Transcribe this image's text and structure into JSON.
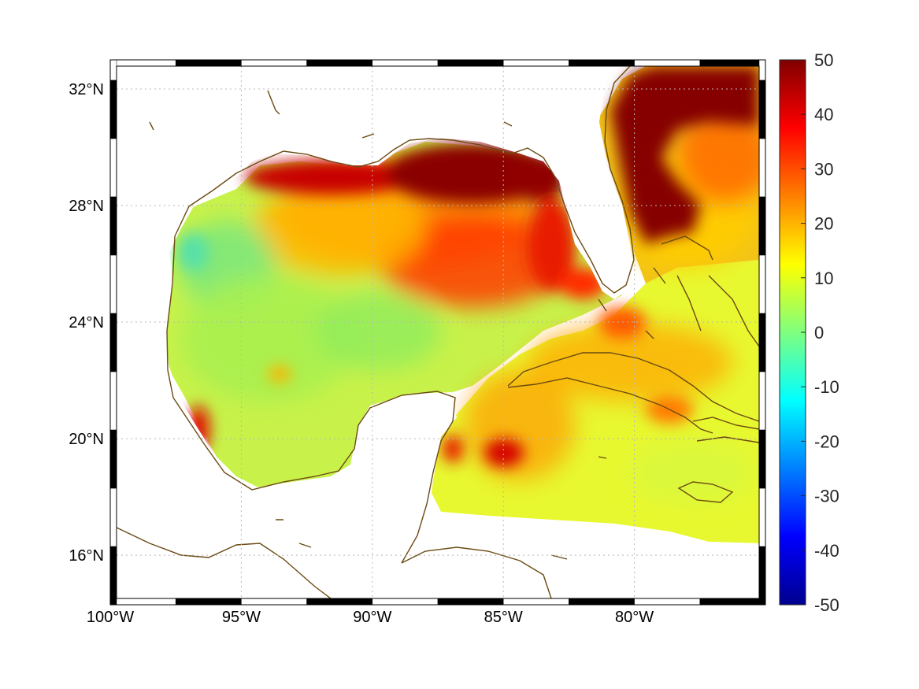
{
  "map": {
    "lon_range": [
      -100,
      -75
    ],
    "lat_range": [
      14.3,
      33
    ],
    "lon_ticks": [
      {
        "value": -100,
        "label": "100°W"
      },
      {
        "value": -95,
        "label": "95°W"
      },
      {
        "value": -90,
        "label": "90°W"
      },
      {
        "value": -85,
        "label": "85°W"
      },
      {
        "value": -80,
        "label": "80°W"
      }
    ],
    "lat_ticks": [
      {
        "value": 32,
        "label": "32°N"
      },
      {
        "value": 28,
        "label": "28°N"
      },
      {
        "value": 24,
        "label": "24°N"
      },
      {
        "value": 20,
        "label": "20°N"
      },
      {
        "value": 16,
        "label": "16°N"
      }
    ],
    "grid": true,
    "frame_style": "alternating black/white"
  },
  "colorbar": {
    "colormap": "jet",
    "range": [
      -50,
      50
    ],
    "ticks": [
      "50",
      "40",
      "30",
      "20",
      "10",
      "0",
      "-10",
      "-20",
      "-30",
      "-40",
      "-50"
    ],
    "placement": "right"
  },
  "colors": {
    "coastline": "#6b4a12",
    "frame_dark": "#000000",
    "frame_light": "#ffffff"
  }
}
